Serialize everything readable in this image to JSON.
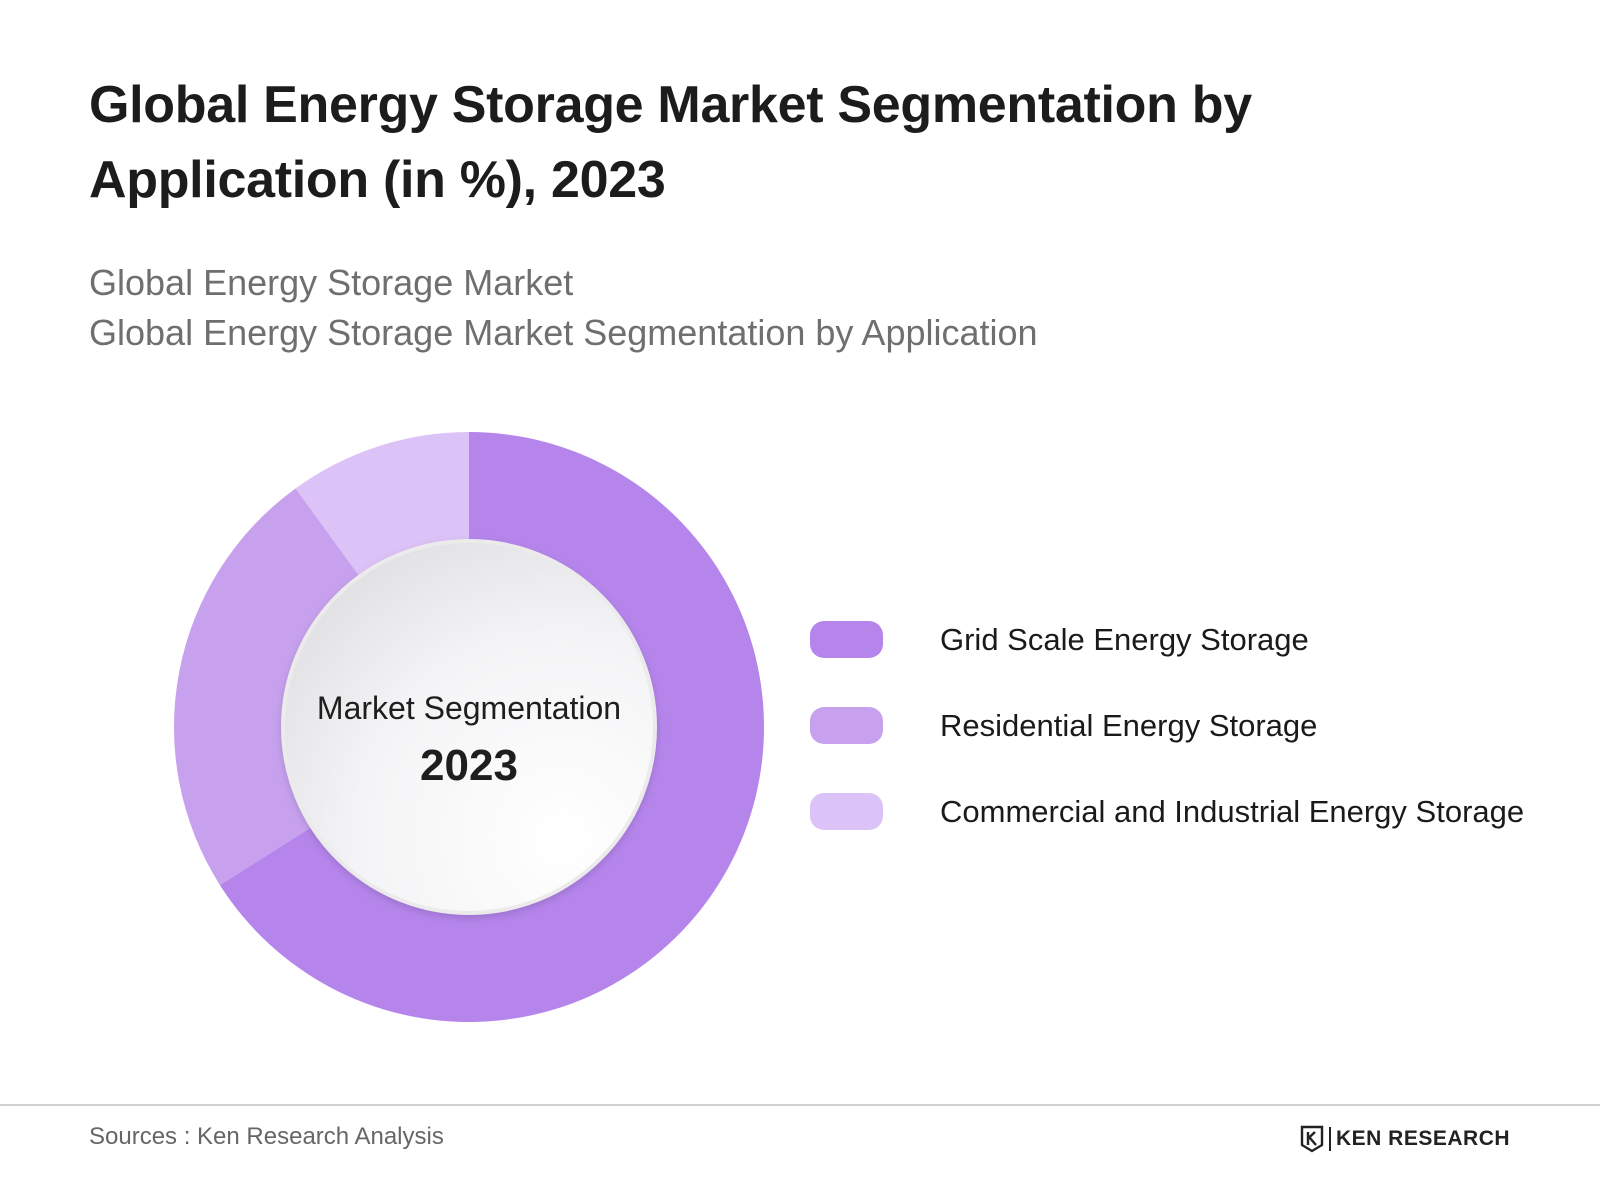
{
  "header": {
    "title": "Global Energy Storage Market Segmentation by Application (in %), 2023",
    "subtitle_lines": [
      "Global Energy Storage Market",
      "Global Energy Storage Market Segmentation by Application"
    ]
  },
  "chart_data": {
    "type": "pie",
    "donut": true,
    "center_label": "Market Segmentation",
    "center_year": "2023",
    "legend_position": "right",
    "categories": [
      "Grid Scale Energy Storage",
      "Residential Energy Storage",
      "Commercial and Industrial Energy Storage"
    ],
    "values": [
      66,
      24,
      10
    ],
    "colors": [
      "#b585ec",
      "#c7a1ee",
      "#dcc3f7"
    ]
  },
  "footer": {
    "source": "Sources : Ken Research Analysis",
    "brand": "KEN RESEARCH"
  }
}
